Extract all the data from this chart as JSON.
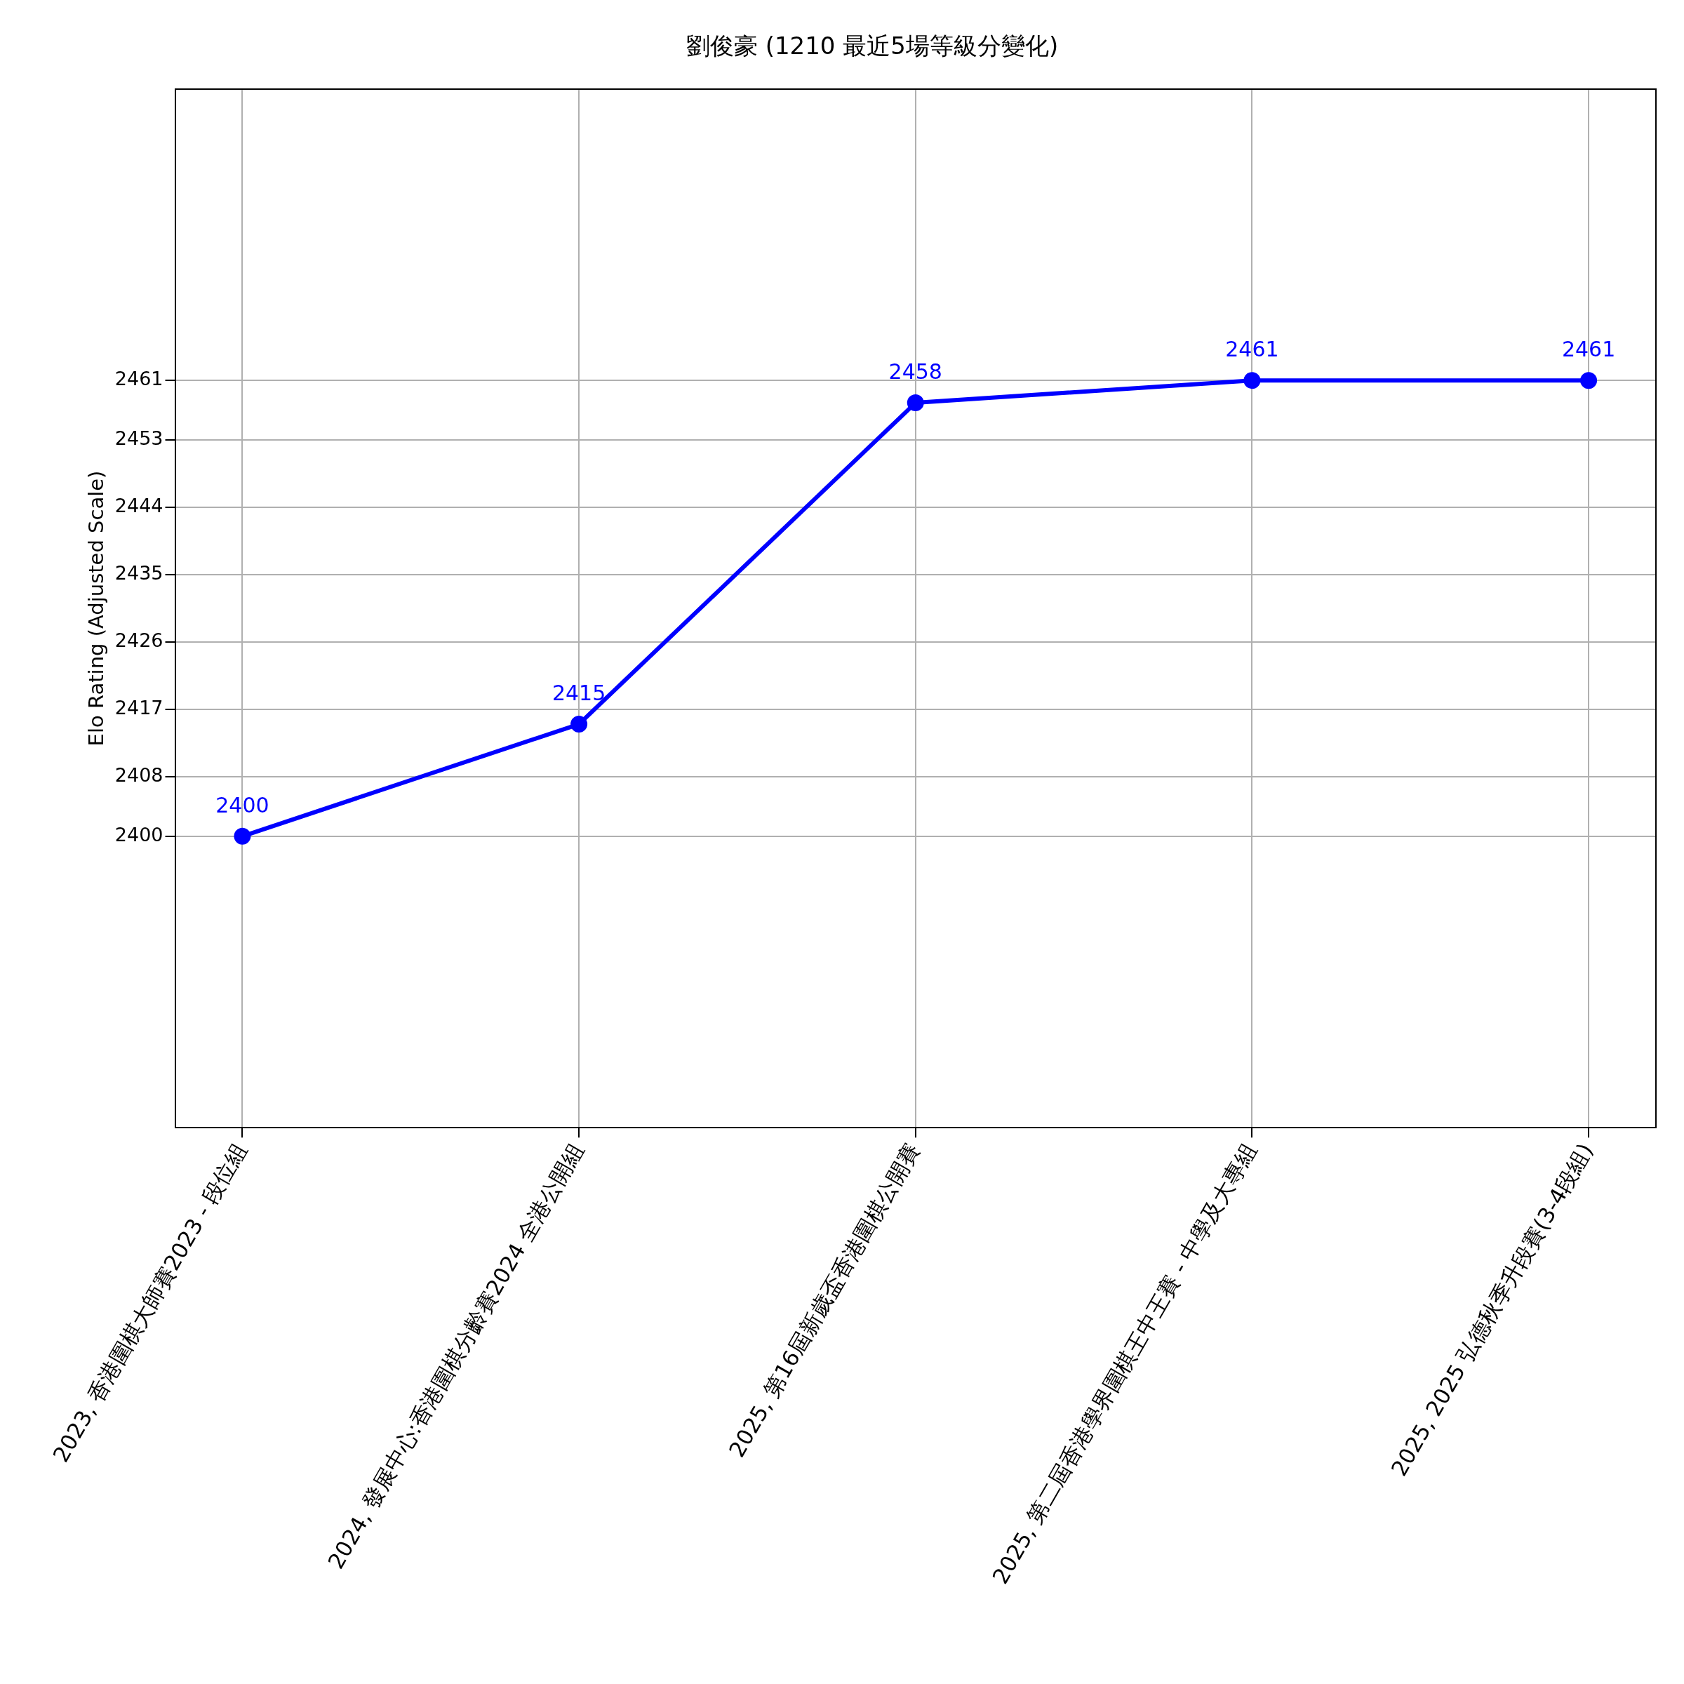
{
  "chart_data": {
    "type": "line",
    "title": "劉俊豪 (1210 最近5場等級分變化)",
    "ylabel": "Elo Rating (Adjusted Scale)",
    "categories": [
      "2023, 香港圍棋大師賽2023 - 段位組",
      "2024, 發展中心:香港圍棋分齡賽2024 全港公開組",
      "2025, 第16屆新歲盃香港圍棋公開賽",
      "2025, 第二屆香港學界圍棋王中王賽 - 中學及大專組",
      "2025, 2025 弘德秋季升段賽(3-4段組)"
    ],
    "series": [
      {
        "color": "#0000ff",
        "values": [
          2400,
          2415,
          2458,
          2461,
          2461
        ]
      }
    ],
    "ylim": [
      2361,
      2500
    ],
    "yticks": [
      2400,
      2408,
      2417,
      2426,
      2435,
      2444,
      2453,
      2461
    ],
    "grid": true,
    "marker": "circle",
    "line_style": "solid",
    "data_labels": true,
    "legend": false
  }
}
